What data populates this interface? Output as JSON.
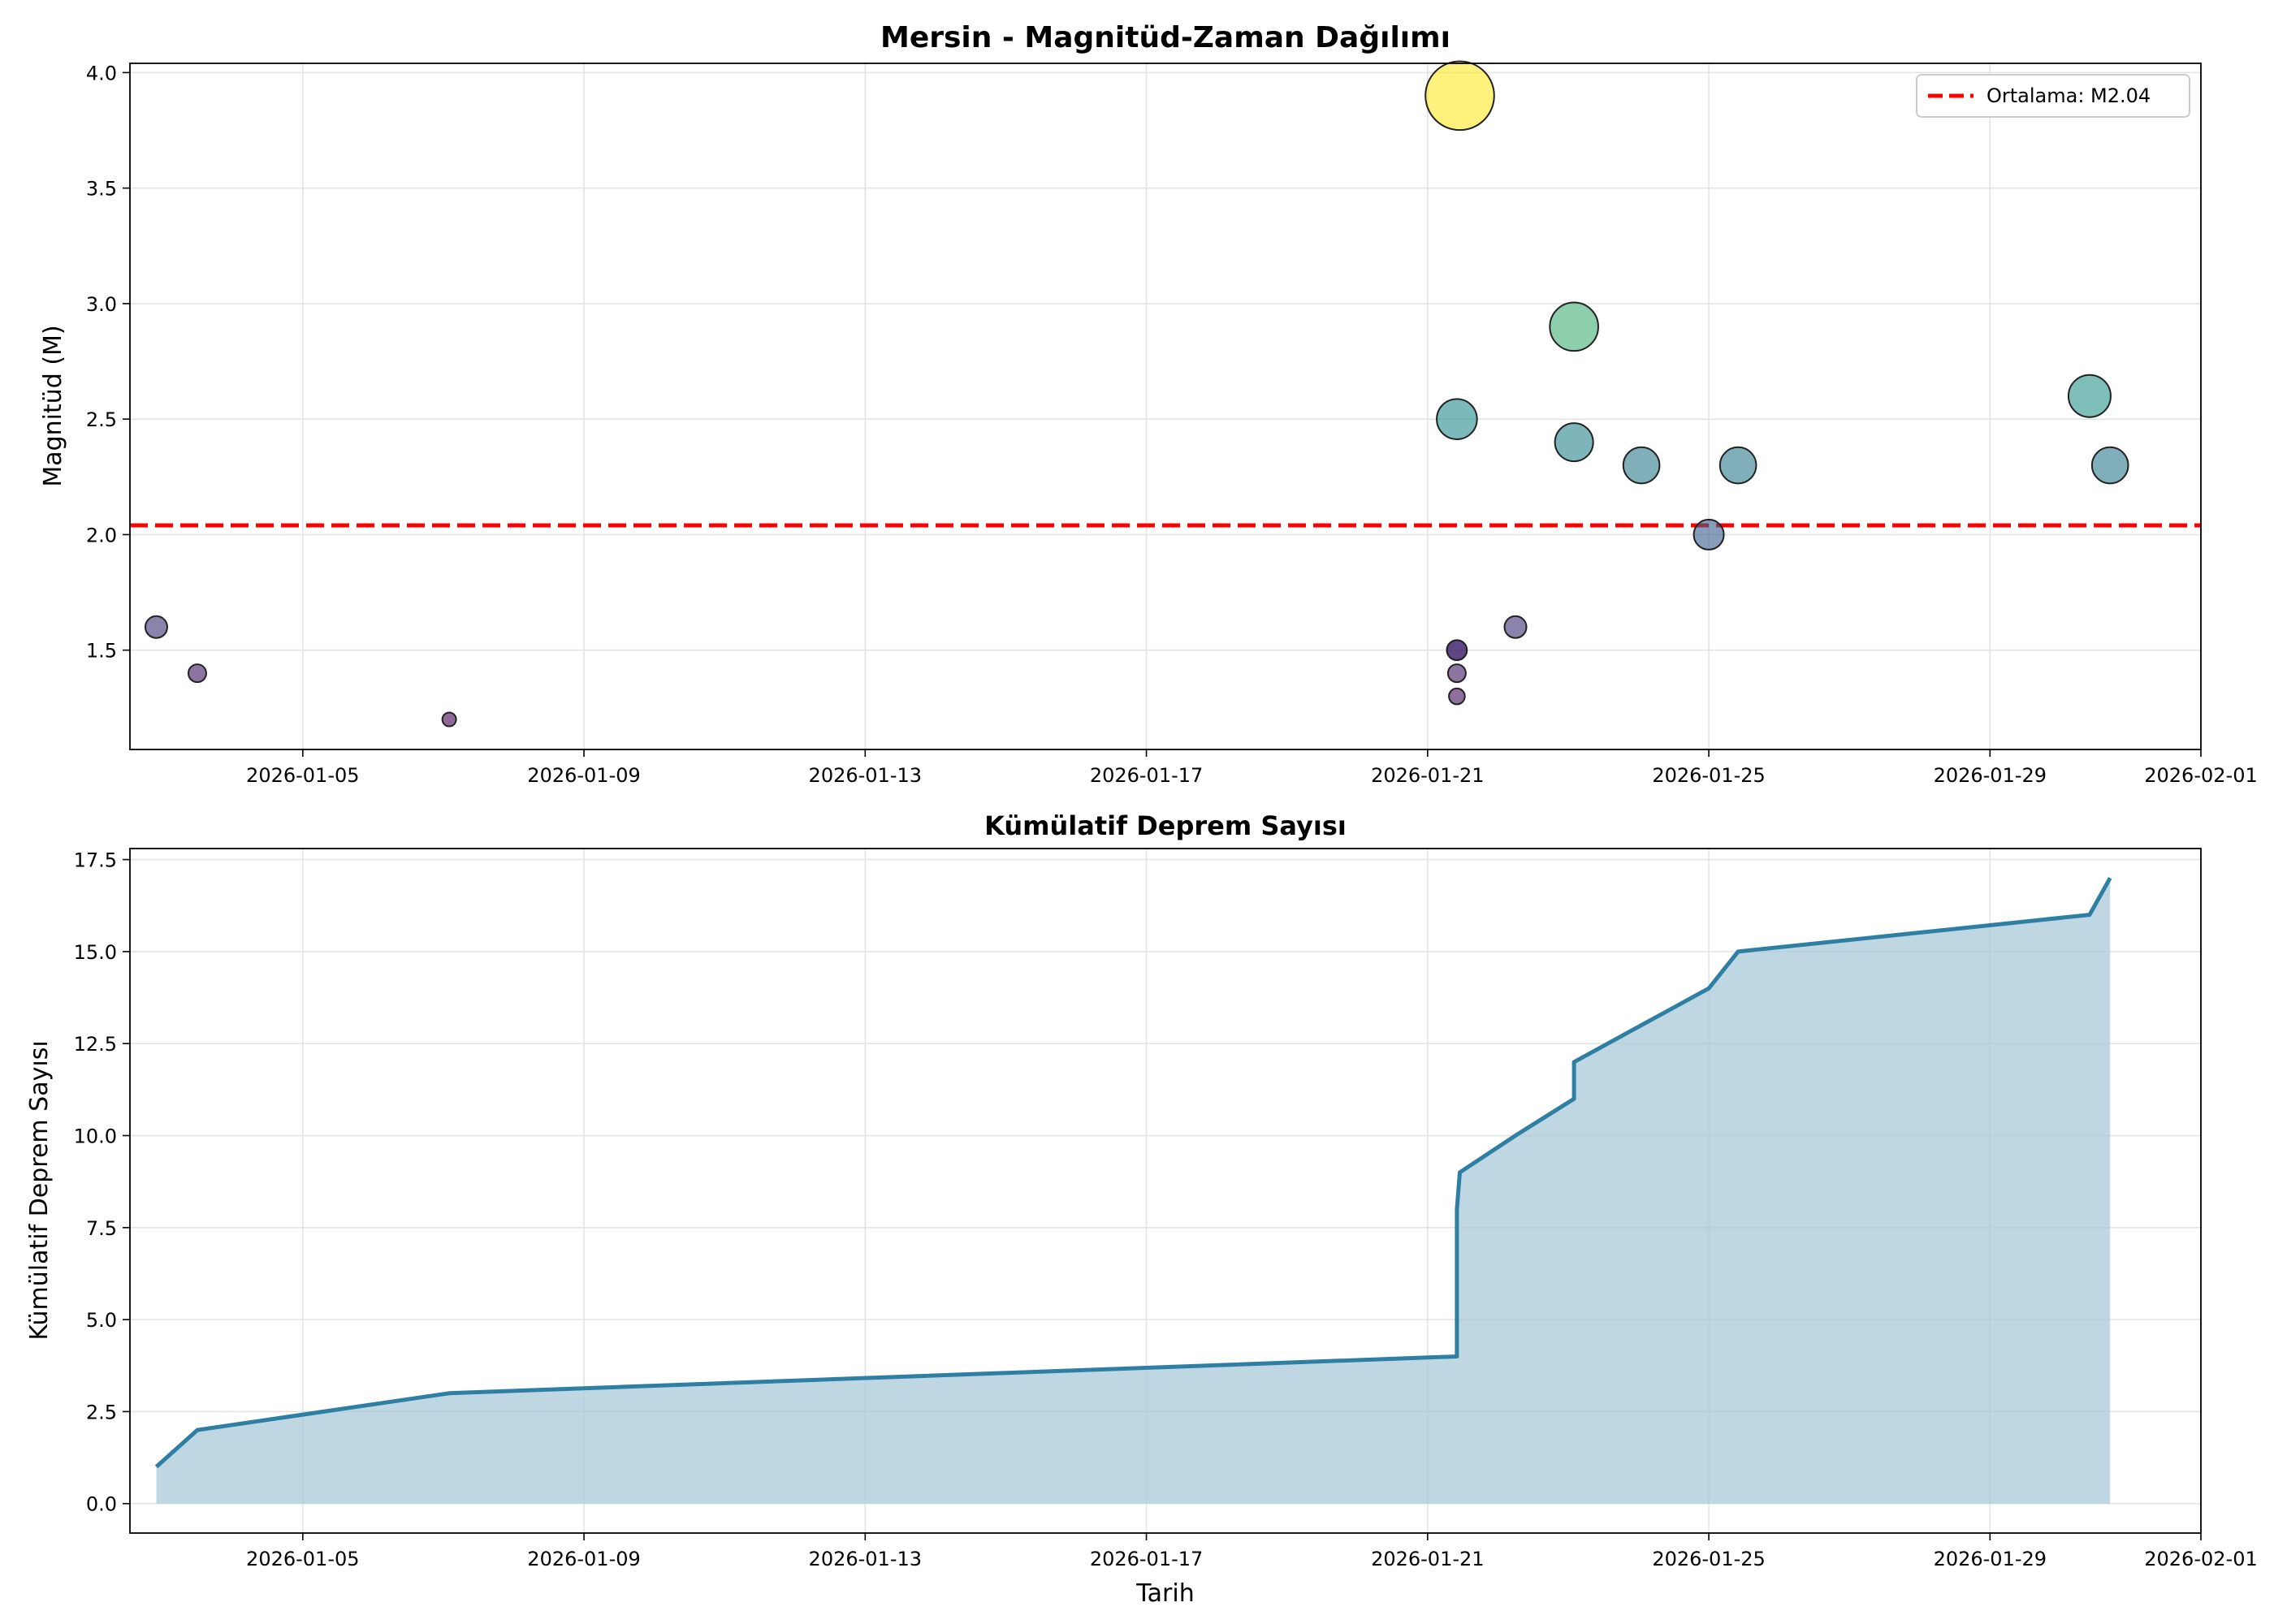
{
  "chart_data": [
    {
      "type": "scatter",
      "title": "Mersin - Magnitüd-Zaman Dağılımı",
      "xlabel": "",
      "ylabel": "Magnitüd (M)",
      "x_ticks": [
        "2026-01-05",
        "2026-01-09",
        "2026-01-13",
        "2026-01-17",
        "2026-01-21",
        "2026-01-25",
        "2026-01-29",
        "2026-02-01"
      ],
      "y_ticks": [
        "1.5",
        "2.0",
        "2.5",
        "3.0",
        "3.5",
        "4.0"
      ],
      "xlim": [
        "2026-01-02T13:00",
        "2026-02-01T00:00"
      ],
      "ylim": [
        1.07,
        4.04
      ],
      "grid": true,
      "legend": {
        "position": "top-right",
        "entries": [
          "Ortalama: M2.04"
        ]
      },
      "mean_line": {
        "value": 2.04,
        "color": "#ff0000",
        "style": "dashed"
      },
      "colormap": "viridis",
      "points": [
        {
          "x": "2026-01-02T22:00",
          "y": 1.6
        },
        {
          "x": "2026-01-03T12:00",
          "y": 1.4
        },
        {
          "x": "2026-01-07T02:00",
          "y": 1.2
        },
        {
          "x": "2026-01-21T10:00",
          "y": 1.3
        },
        {
          "x": "2026-01-21T10:00",
          "y": 1.4
        },
        {
          "x": "2026-01-21T10:00",
          "y": 1.5
        },
        {
          "x": "2026-01-21T10:00",
          "y": 1.5
        },
        {
          "x": "2026-01-21T10:00",
          "y": 2.5
        },
        {
          "x": "2026-01-21T11:00",
          "y": 3.9
        },
        {
          "x": "2026-01-22T06:00",
          "y": 1.6
        },
        {
          "x": "2026-01-23T02:00",
          "y": 2.9
        },
        {
          "x": "2026-01-23T02:00",
          "y": 2.4
        },
        {
          "x": "2026-01-24T01:00",
          "y": 2.3
        },
        {
          "x": "2026-01-25T00:00",
          "y": 2.0
        },
        {
          "x": "2026-01-25T10:00",
          "y": 2.3
        },
        {
          "x": "2026-01-30T10:00",
          "y": 2.6
        },
        {
          "x": "2026-01-30T17:00",
          "y": 2.3
        }
      ]
    },
    {
      "type": "area",
      "title": "Kümülatif Deprem Sayısı",
      "xlabel": "Tarih",
      "ylabel": "Kümülatif Deprem Sayısı",
      "x_ticks": [
        "2026-01-05",
        "2026-01-09",
        "2026-01-13",
        "2026-01-17",
        "2026-01-21",
        "2026-01-25",
        "2026-01-29",
        "2026-02-01"
      ],
      "y_ticks": [
        "0.0",
        "2.5",
        "5.0",
        "7.5",
        "10.0",
        "12.5",
        "15.0",
        "17.5"
      ],
      "xlim": [
        "2026-01-02T13:00",
        "2026-02-01T00:00"
      ],
      "ylim": [
        -0.8,
        17.8
      ],
      "grid": true,
      "line_color": "#2e7fa3",
      "fill_color": "#a9cad9",
      "x": [
        "2026-01-02T22:00",
        "2026-01-03T12:00",
        "2026-01-07T02:00",
        "2026-01-21T10:00",
        "2026-01-21T10:00",
        "2026-01-21T10:00",
        "2026-01-21T10:00",
        "2026-01-21T10:00",
        "2026-01-21T11:00",
        "2026-01-22T06:00",
        "2026-01-23T02:00",
        "2026-01-23T02:00",
        "2026-01-24T01:00",
        "2026-01-25T00:00",
        "2026-01-25T10:00",
        "2026-01-30T10:00",
        "2026-01-30T17:00"
      ],
      "values": [
        1,
        2,
        3,
        4,
        5,
        6,
        7,
        8,
        9,
        10,
        11,
        12,
        13,
        14,
        15,
        16,
        17
      ]
    }
  ]
}
